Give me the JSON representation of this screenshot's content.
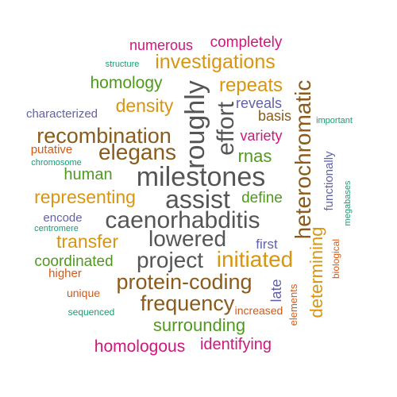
{
  "colors": {
    "magenta": "#d0177a",
    "orange": "#d9950f",
    "olive": "#4f9a1d",
    "brown": "#8a5b1a",
    "slate": "#6262a6",
    "teal": "#1a9b74",
    "dark": "#555555",
    "rust": "#d45a14"
  },
  "words": [
    {
      "text": "numerous",
      "color": "magenta"
    },
    {
      "text": "completely",
      "color": "magenta"
    },
    {
      "text": "structure",
      "color": "teal"
    },
    {
      "text": "investigations",
      "color": "orange"
    },
    {
      "text": "homology",
      "color": "olive"
    },
    {
      "text": "repeats",
      "color": "orange"
    },
    {
      "text": "roughly",
      "color": "dark"
    },
    {
      "text": "effort",
      "color": "dark"
    },
    {
      "text": "heterochromatic",
      "color": "brown"
    },
    {
      "text": "reveals",
      "color": "slate"
    },
    {
      "text": "characterized",
      "color": "slate"
    },
    {
      "text": "density",
      "color": "orange"
    },
    {
      "text": "basis",
      "color": "brown"
    },
    {
      "text": "important",
      "color": "teal"
    },
    {
      "text": "recombination",
      "color": "brown"
    },
    {
      "text": "variety",
      "color": "magenta"
    },
    {
      "text": "putative",
      "color": "rust"
    },
    {
      "text": "elegans",
      "color": "brown"
    },
    {
      "text": "rnas",
      "color": "olive"
    },
    {
      "text": "chromosome",
      "color": "teal"
    },
    {
      "text": "human",
      "color": "olive"
    },
    {
      "text": "milestones",
      "color": "dark"
    },
    {
      "text": "functionally",
      "color": "slate"
    },
    {
      "text": "megabases",
      "color": "teal"
    },
    {
      "text": "representing",
      "color": "orange"
    },
    {
      "text": "assist",
      "color": "dark"
    },
    {
      "text": "define",
      "color": "olive"
    },
    {
      "text": "encode",
      "color": "slate"
    },
    {
      "text": "caenorhabditis",
      "color": "dark"
    },
    {
      "text": "centromere",
      "color": "teal"
    },
    {
      "text": "determining",
      "color": "orange"
    },
    {
      "text": "transfer",
      "color": "orange"
    },
    {
      "text": "lowered",
      "color": "dark"
    },
    {
      "text": "first",
      "color": "slate"
    },
    {
      "text": "biological",
      "color": "rust"
    },
    {
      "text": "coordinated",
      "color": "olive"
    },
    {
      "text": "project",
      "color": "dark"
    },
    {
      "text": "initiated",
      "color": "orange"
    },
    {
      "text": "higher",
      "color": "rust"
    },
    {
      "text": "protein-coding",
      "color": "brown"
    },
    {
      "text": "late",
      "color": "slate"
    },
    {
      "text": "elements",
      "color": "rust"
    },
    {
      "text": "unique",
      "color": "rust"
    },
    {
      "text": "frequency",
      "color": "brown"
    },
    {
      "text": "sequenced",
      "color": "teal"
    },
    {
      "text": "increased",
      "color": "rust"
    },
    {
      "text": "surrounding",
      "color": "olive"
    },
    {
      "text": "homologous",
      "color": "magenta"
    },
    {
      "text": "identifying",
      "color": "magenta"
    }
  ]
}
